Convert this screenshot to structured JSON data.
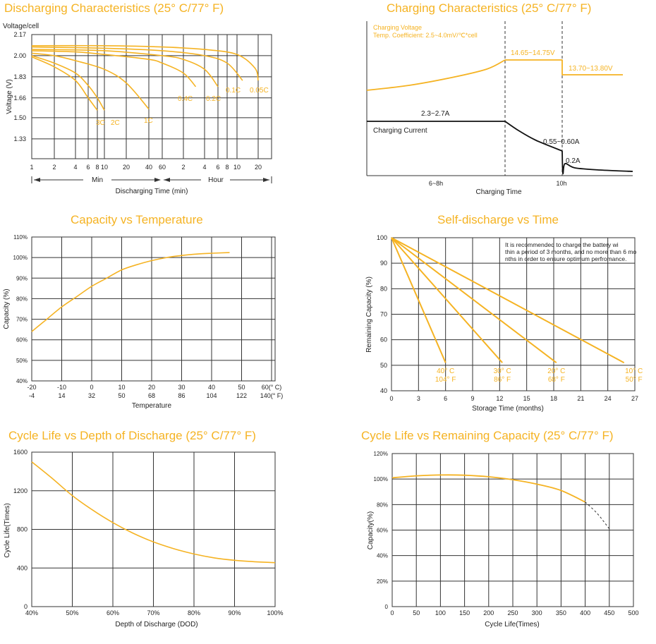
{
  "colors": {
    "accent": "#f5b323",
    "grid": "#333333",
    "text": "#222222",
    "curve": "#f5b323",
    "current": "#111111"
  },
  "chart_data": [
    {
      "id": "discharge",
      "type": "line",
      "title": "Discharging Characteristics (25° C/77° F)",
      "ylabel": "Voltage (V)",
      "ytitle": "Voltage/cell",
      "xlabel": "Discharging Time (min)",
      "yticks": [
        "2.17",
        "2.00",
        "1.83",
        "1.66",
        "1.50",
        "1.33"
      ],
      "xticks": [
        "1",
        "2",
        "4",
        "6",
        "8",
        "10",
        "20",
        "40",
        "60",
        "2",
        "4",
        "6",
        "8",
        "10",
        "20"
      ],
      "range_labels": [
        "Min",
        "Hour"
      ],
      "ylim": [
        1.17,
        2.17
      ],
      "series": [
        {
          "name": "3C",
          "x": [
            1,
            2,
            4,
            6,
            8
          ],
          "y": [
            1.99,
            1.91,
            1.8,
            1.66,
            1.56
          ]
        },
        {
          "name": "2C",
          "x": [
            1,
            2,
            4,
            6,
            8,
            10
          ],
          "y": [
            2.0,
            1.94,
            1.86,
            1.76,
            1.66,
            1.56
          ]
        },
        {
          "name": "1C",
          "x": [
            1,
            2,
            4,
            10,
            20,
            40
          ],
          "y": [
            2.02,
            2.0,
            1.96,
            1.89,
            1.78,
            1.57
          ]
        },
        {
          "name": "0.4C",
          "x": [
            1,
            4,
            10,
            40,
            60,
            120,
            180
          ],
          "y": [
            2.04,
            2.03,
            2.01,
            1.97,
            1.94,
            1.86,
            1.75
          ]
        },
        {
          "name": "0.2C",
          "x": [
            1,
            10,
            60,
            120,
            240,
            360
          ],
          "y": [
            2.05,
            2.04,
            2.0,
            1.97,
            1.89,
            1.75
          ]
        },
        {
          "name": "0.1C",
          "x": [
            1,
            10,
            60,
            240,
            480,
            720
          ],
          "y": [
            2.07,
            2.06,
            2.04,
            2.0,
            1.94,
            1.8
          ]
        },
        {
          "name": "0.05C",
          "x": [
            1,
            10,
            60,
            240,
            600,
            1080,
            1200
          ],
          "y": [
            2.08,
            2.08,
            2.07,
            2.05,
            2.01,
            1.9,
            1.8
          ]
        }
      ]
    },
    {
      "id": "charging",
      "type": "line",
      "title": "Charging Characteristics (25° C/77° F)",
      "xlabel": "Charging Time",
      "xticks": [
        "6~8h",
        "10h"
      ],
      "annotations": [
        "Charging Voltage",
        "Temp. Coefficient: 2.5~4.0mV/℃*cell",
        "14.65~14.75V",
        "13.70~13.80V",
        "2.3~2.7A",
        "Charging Current",
        "0.55~0.60A",
        "0.2A"
      ]
    },
    {
      "id": "temperature",
      "type": "line",
      "title": "Capacity vs Temperature",
      "ylabel": "Capacity (%)",
      "xlabel": "Temperature",
      "yticks": [
        "110%",
        "100%",
        "90%",
        "80%",
        "70%",
        "60%",
        "50%",
        "40%"
      ],
      "xticks_c": [
        "-20",
        "-10",
        "0",
        "10",
        "20",
        "30",
        "40",
        "50",
        "60(° C)"
      ],
      "xticks_f": [
        "-4",
        "14",
        "32",
        "50",
        "68",
        "86",
        "104",
        "122",
        "140(° F)"
      ],
      "xlim": [
        -20,
        60
      ],
      "ylim": [
        40,
        110
      ],
      "series": [
        {
          "x": [
            -20,
            -15,
            -10,
            -5,
            0,
            5,
            10,
            15,
            20,
            25,
            30,
            35,
            40,
            46
          ],
          "y": [
            64,
            70,
            76,
            81,
            86,
            90,
            94,
            96.5,
            98.5,
            100,
            101,
            101.7,
            102.1,
            102.4
          ]
        }
      ]
    },
    {
      "id": "selfdischarge",
      "type": "line",
      "title": "Self-discharge vs Time",
      "ylabel": "Remaining Capacity (%)",
      "xlabel": "Storage Time (months)",
      "note": "It is recommended to charge the battery within a period of 3 months, and no more than 6 months in order to ensure optimum perfromance.",
      "yticks": [
        "100",
        "90",
        "80",
        "70",
        "60",
        "50",
        "40"
      ],
      "xticks": [
        "0",
        "3",
        "6",
        "9",
        "12",
        "15",
        "18",
        "21",
        "24",
        "27"
      ],
      "xlim": [
        0,
        27
      ],
      "ylim": [
        40,
        100
      ],
      "series": [
        {
          "name_c": "40° C",
          "name_f": "104° F",
          "x": [
            0,
            6
          ],
          "y": [
            100,
            51
          ]
        },
        {
          "name_c": "30° C",
          "name_f": "86° F",
          "x": [
            0,
            12.3
          ],
          "y": [
            100,
            51
          ]
        },
        {
          "name_c": "20° C",
          "name_f": "68° F",
          "x": [
            0,
            18.3
          ],
          "y": [
            100,
            51
          ]
        },
        {
          "name_c": "10° C",
          "name_f": "50° F",
          "x": [
            0,
            25.8
          ],
          "y": [
            100,
            51
          ]
        }
      ]
    },
    {
      "id": "dod",
      "type": "line",
      "title": "Cycle Life vs Depth of Discharge (25° C/77° F)",
      "ylabel": "Cycle Life(Times)",
      "xlabel": "Depth of Discharge (DOD)",
      "yticks": [
        "1600",
        "1200",
        "800",
        "400",
        "0"
      ],
      "xticks": [
        "40%",
        "50%",
        "60%",
        "70%",
        "80%",
        "90%",
        "100%"
      ],
      "xlim": [
        40,
        100
      ],
      "ylim": [
        0,
        1600
      ],
      "series": [
        {
          "x": [
            40,
            45,
            50,
            55,
            60,
            65,
            70,
            75,
            80,
            85,
            90,
            95,
            100
          ],
          "y": [
            1500,
            1330,
            1150,
            1000,
            870,
            760,
            670,
            600,
            545,
            505,
            480,
            465,
            455
          ]
        }
      ]
    },
    {
      "id": "cyclelife",
      "type": "line",
      "title": "Cycle Life vs Remaining Capacity (25° C/77° F)",
      "ylabel": "Capacity(%)",
      "xlabel": "Cycle Life(Times)",
      "yticks": [
        "120%",
        "100%",
        "80%",
        "60%",
        "40%",
        "20%",
        "0"
      ],
      "xticks": [
        "0",
        "50",
        "100",
        "150",
        "200",
        "250",
        "300",
        "350",
        "400",
        "450",
        "500"
      ],
      "xlim": [
        0,
        500
      ],
      "ylim": [
        0,
        120
      ],
      "series": [
        {
          "x": [
            0,
            50,
            100,
            150,
            200,
            250,
            300,
            350,
            400
          ],
          "y": [
            101,
            102.5,
            103.2,
            103,
            101.8,
            99.5,
            96,
            91,
            82
          ]
        },
        {
          "style": "dashed",
          "x": [
            400,
            425,
            450
          ],
          "y": [
            82,
            73,
            61
          ]
        }
      ]
    }
  ]
}
